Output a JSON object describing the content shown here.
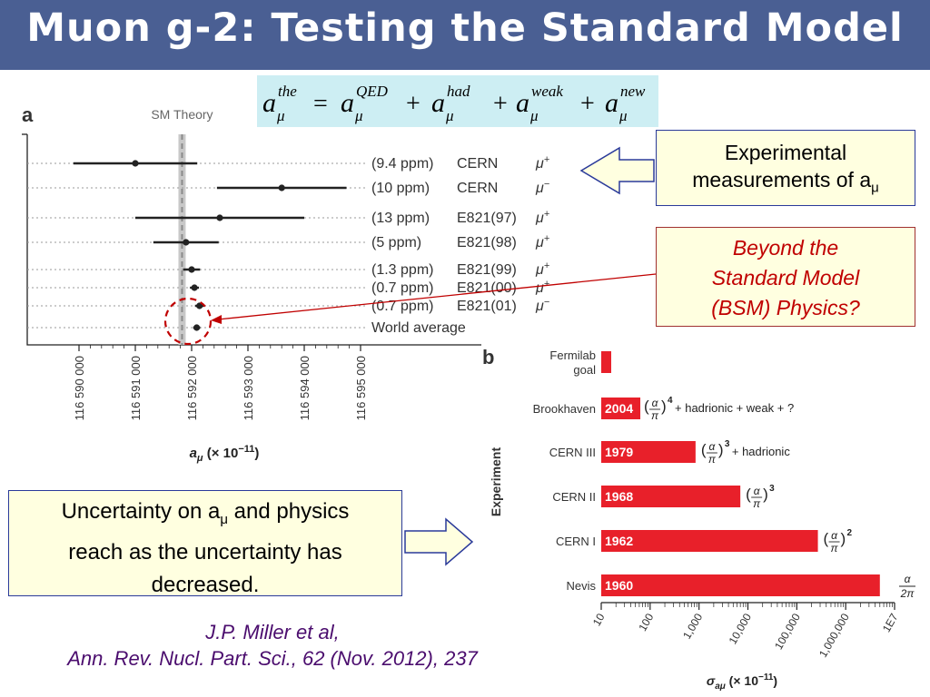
{
  "title": "Muon g-2: Testing the Standard Model",
  "formula": {
    "lhs": "a",
    "lhs_sup": "the",
    "sub": "μ",
    "eq": "=",
    "terms": [
      {
        "base": "a",
        "sup": "QED"
      },
      {
        "base": "a",
        "sup": "had"
      },
      {
        "base": "a",
        "sup": "weak"
      },
      {
        "base": "a",
        "sup": "new"
      }
    ],
    "plus": "+"
  },
  "callouts": {
    "experimental": {
      "line1": "Experimental",
      "line2": "measurements of a",
      "sub": "μ"
    },
    "bsm": {
      "line1": "Beyond the",
      "line2": "Standard Model",
      "line3": "(BSM) Physics?"
    },
    "uncertainty": {
      "line1a": "Uncertainty on a",
      "sub": "μ",
      "line1b": " and physics",
      "line2": "reach as the uncertainty has",
      "line3": "decreased."
    }
  },
  "reference": {
    "line1": "J.P. Miller et al,",
    "line2": "Ann. Rev. Nucl. Part. Sci., 62 (Nov. 2012), 237"
  },
  "colors": {
    "title_bg": "#4a5f93",
    "bar_red": "#e8202a",
    "bsm_red": "#c00000",
    "callout_bg": "#ffffe0",
    "ref_purple": "#4b0d6e"
  },
  "chart_data": [
    {
      "type": "scatter",
      "panel_label": "a",
      "reference_band_label": "SM Theory",
      "xlabel": "a",
      "xlabel_sub": "μ",
      "xlabel_units": "(× 10",
      "xlabel_exp": "−11",
      "xlabel_close": ")",
      "xlim": [
        116589000,
        116595500
      ],
      "xticks": [
        116590000,
        116591000,
        116592000,
        116593000,
        116594000,
        116595000
      ],
      "xtick_labels": [
        "116 590 000",
        "116 591 000",
        "116 592 000",
        "116 593 000",
        "116 594 000",
        "116 595 000"
      ],
      "sm_theory": 116591830,
      "points": [
        {
          "value": 116591000,
          "err": 1100,
          "precision": "(9.4 ppm)",
          "experiment": "CERN",
          "muon": "μ",
          "charge": "+"
        },
        {
          "value": 116593600,
          "err": 1150,
          "precision": "(10 ppm)",
          "experiment": "CERN",
          "muon": "μ",
          "charge": "−"
        },
        {
          "value": 116592500,
          "err": 1500,
          "precision": "(13 ppm)",
          "experiment": "E821(97)",
          "muon": "μ",
          "charge": "+"
        },
        {
          "value": 116591900,
          "err": 580,
          "precision": "(5 ppm)",
          "experiment": "E821(98)",
          "muon": "μ",
          "charge": "+"
        },
        {
          "value": 116592000,
          "err": 150,
          "precision": "(1.3 ppm)",
          "experiment": "E821(99)",
          "muon": "μ",
          "charge": "+"
        },
        {
          "value": 116592050,
          "err": 80,
          "precision": "(0.7 ppm)",
          "experiment": "E821(00)",
          "muon": "μ",
          "charge": "+"
        },
        {
          "value": 116592140,
          "err": 80,
          "precision": "(0.7 ppm)",
          "experiment": "E821(01)",
          "muon": "μ",
          "charge": "−"
        },
        {
          "value": 116592090,
          "err": 63,
          "precision": "",
          "experiment": "World average",
          "muon": "",
          "charge": ""
        }
      ]
    },
    {
      "type": "bar",
      "panel_label": "b",
      "orientation": "horizontal",
      "log_scale": true,
      "ylabel": "Experiment",
      "xlabel": "σ",
      "xlabel_sub": "aμ",
      "xlabel_units": "(× 10",
      "xlabel_exp": "−11",
      "xlabel_close": ")",
      "xlim": [
        10,
        10000000
      ],
      "xtick_labels": [
        "10",
        "100",
        "1,000",
        "10,000",
        "100,000",
        "1,000,000",
        "1E7"
      ],
      "categories": [
        "Fermilab goal",
        "Brookhaven",
        "CERN III",
        "CERN II",
        "CERN I",
        "Nevis"
      ],
      "category_lines": [
        [
          "Fermilab",
          "goal"
        ],
        [
          "Brookhaven"
        ],
        [
          "CERN III"
        ],
        [
          "CERN II"
        ],
        [
          "CERN I"
        ],
        [
          "Nevis"
        ]
      ],
      "values": [
        16,
        63,
        850,
        7000,
        270000,
        5000000
      ],
      "bar_labels": [
        "",
        "2004",
        "1979",
        "1968",
        "1962",
        "1960"
      ],
      "annotations": [
        "",
        "(α/π)^4 + hadrionic + weak + ?",
        "(α/π)^3 + hadrionic",
        "(α/π)^3",
        "(α/π)^2",
        "α/2π"
      ],
      "annotation_text": [
        "",
        "+ hadrionic + weak + ?",
        "+ hadrionic",
        "",
        "",
        ""
      ],
      "annotation_power": [
        "",
        "4",
        "3",
        "3",
        "2",
        ""
      ],
      "alpha": "α",
      "pi": "π",
      "two_pi": "2π"
    }
  ]
}
